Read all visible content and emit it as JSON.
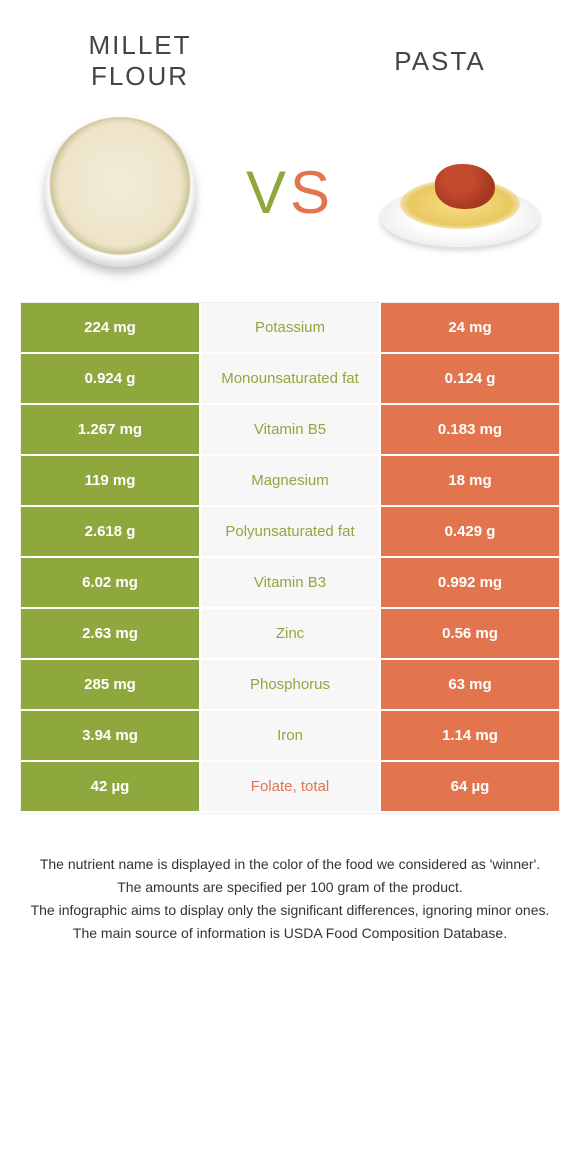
{
  "colors": {
    "green": "#8fa83e",
    "orange": "#e2754d",
    "mid_bg": "#f7f7f7"
  },
  "header": {
    "left_title": "MILLET FLOUR",
    "right_title": "PASTA",
    "vs_v": "V",
    "vs_s": "S"
  },
  "rows": [
    {
      "left": "224 mg",
      "mid": "Potassium",
      "right": "24 mg",
      "winner": "left"
    },
    {
      "left": "0.924 g",
      "mid": "Monounsaturated fat",
      "right": "0.124 g",
      "winner": "left"
    },
    {
      "left": "1.267 mg",
      "mid": "Vitamin B5",
      "right": "0.183 mg",
      "winner": "left"
    },
    {
      "left": "119 mg",
      "mid": "Magnesium",
      "right": "18 mg",
      "winner": "left"
    },
    {
      "left": "2.618 g",
      "mid": "Polyunsaturated fat",
      "right": "0.429 g",
      "winner": "left"
    },
    {
      "left": "6.02 mg",
      "mid": "Vitamin B3",
      "right": "0.992 mg",
      "winner": "left"
    },
    {
      "left": "2.63 mg",
      "mid": "Zinc",
      "right": "0.56 mg",
      "winner": "left"
    },
    {
      "left": "285 mg",
      "mid": "Phosphorus",
      "right": "63 mg",
      "winner": "left"
    },
    {
      "left": "3.94 mg",
      "mid": "Iron",
      "right": "1.14 mg",
      "winner": "left"
    },
    {
      "left": "42 µg",
      "mid": "Folate, total",
      "right": "64 µg",
      "winner": "right"
    }
  ],
  "footnotes": [
    "The nutrient name is displayed in the color of the food we considered as 'winner'.",
    "The amounts are specified per 100 gram of the product.",
    "The infographic aims to display only the significant differences, ignoring minor ones.",
    "The main source of information is USDA Food Composition Database."
  ]
}
